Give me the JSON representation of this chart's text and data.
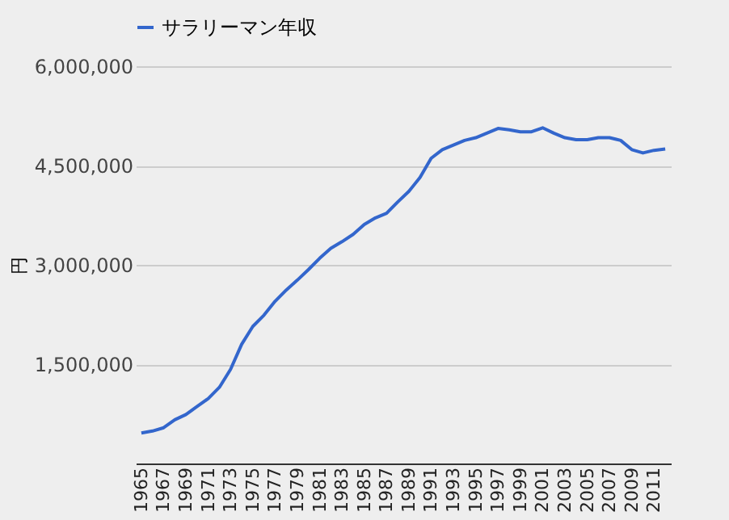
{
  "chart_data": {
    "type": "line",
    "ylabel": "円",
    "categories": [
      "1965",
      null,
      "1967",
      null,
      "1969",
      null,
      "1971",
      null,
      "1973",
      null,
      "1975",
      null,
      "1977",
      null,
      "1979",
      null,
      "1981",
      null,
      "1983",
      null,
      "1985",
      null,
      "1987",
      null,
      "1989",
      null,
      "1991",
      null,
      "1993",
      null,
      "1995",
      null,
      "1997",
      null,
      "1999",
      null,
      "2001",
      null,
      "2003",
      null,
      "2005",
      null,
      "2007",
      null,
      "2009",
      null,
      "2011",
      null
    ],
    "series": [
      {
        "name": "サラリーマン年収",
        "color": "#3366cc",
        "values": [
          460000,
          490000,
          540000,
          660000,
          740000,
          860000,
          980000,
          1150000,
          1420000,
          1800000,
          2070000,
          2240000,
          2450000,
          2620000,
          2770000,
          2930000,
          3100000,
          3250000,
          3350000,
          3460000,
          3610000,
          3710000,
          3780000,
          3950000,
          4110000,
          4320000,
          4610000,
          4740000,
          4810000,
          4880000,
          4920000,
          4990000,
          5060000,
          5040000,
          5010000,
          5010000,
          5070000,
          4990000,
          4920000,
          4890000,
          4890000,
          4920000,
          4920000,
          4880000,
          4740000,
          4690000,
          4730000,
          4750000
        ]
      }
    ],
    "ylim": [
      0,
      6000000
    ],
    "yticks": [
      {
        "value": 1500000,
        "label": "1,500,000"
      },
      {
        "value": 3000000,
        "label": "3,000,000"
      },
      {
        "value": 4500000,
        "label": "4,500,000"
      },
      {
        "value": 6000000,
        "label": "6,000,000"
      }
    ],
    "grid": "y",
    "legend": "top left",
    "marker": "none",
    "line_style": "solid"
  }
}
